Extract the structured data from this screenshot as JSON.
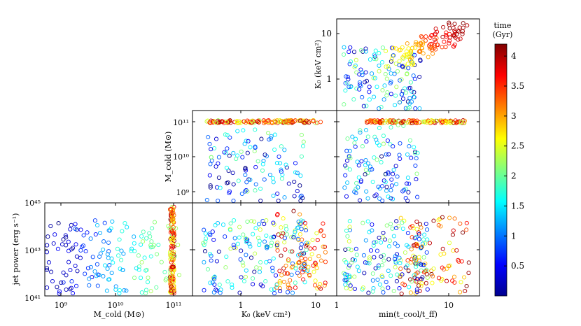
{
  "figure": {
    "colorbar": {
      "title_line1": "time",
      "title_line2": "(Gyr)",
      "ticks": [
        "0.5",
        "1",
        "1.5",
        "2",
        "2.5",
        "3",
        "3.5",
        "4"
      ],
      "range": [
        0,
        4.2
      ],
      "colormap": "jet"
    }
  },
  "chart_data": [
    {
      "id": "k0-vs-tratio",
      "type": "scatter",
      "title": "",
      "xlabel": "",
      "ylabel": "K₀ (keV cm²)",
      "xscale": "log",
      "yscale": "log",
      "xlim": [
        1,
        20
      ],
      "ylim": [
        0.2,
        20
      ],
      "xticks": [],
      "yticks": [
        "1",
        "10"
      ],
      "color_by": "time (Gyr)",
      "point_count": 240
    },
    {
      "id": "mcold-vs-k0",
      "type": "scatter",
      "title": "",
      "xlabel": "",
      "ylabel": "M_cold (M⊙)",
      "xscale": "log",
      "yscale": "log",
      "xlim": [
        0.2,
        16
      ],
      "ylim": [
        500000000.0,
        160000000000.0
      ],
      "xticks": [],
      "yticks": [
        "10⁹",
        "10¹⁰",
        "10¹¹"
      ],
      "color_by": "time (Gyr)",
      "point_count": 250
    },
    {
      "id": "mcold-vs-tratio",
      "type": "scatter",
      "title": "",
      "xlabel": "",
      "ylabel": "",
      "xscale": "log",
      "yscale": "log",
      "xlim": [
        1,
        20
      ],
      "ylim": [
        500000000.0,
        160000000000.0
      ],
      "xticks": [],
      "yticks": [],
      "color_by": "time (Gyr)",
      "point_count": 250
    },
    {
      "id": "power-vs-mcold",
      "type": "scatter",
      "title": "",
      "xlabel": "M_cold (M⊙)",
      "ylabel": "jet power (erg s⁻¹)",
      "xscale": "log",
      "yscale": "log",
      "xlim": [
        500000000.0,
        160000000000.0
      ],
      "ylim": [
        1e+41,
        1e+45
      ],
      "xticks": [
        "10⁹",
        "10¹⁰",
        "10¹¹"
      ],
      "yticks": [
        "10⁴¹",
        "10⁴³",
        "10⁴⁵"
      ],
      "color_by": "time (Gyr)",
      "point_count": 300
    },
    {
      "id": "power-vs-k0",
      "type": "scatter",
      "title": "",
      "xlabel": "K₀ (keV cm²)",
      "ylabel": "",
      "xscale": "log",
      "yscale": "log",
      "xlim": [
        0.2,
        16
      ],
      "ylim": [
        1e+41,
        1e+45
      ],
      "xticks": [
        "1",
        "10"
      ],
      "yticks": [],
      "color_by": "time (Gyr)",
      "point_count": 260
    },
    {
      "id": "power-vs-tratio",
      "type": "scatter",
      "title": "",
      "xlabel": "min(t_cool/t_ff)",
      "ylabel": "",
      "xscale": "log",
      "yscale": "log",
      "xlim": [
        1,
        20
      ],
      "ylim": [
        1e+41,
        1e+45
      ],
      "xticks": [
        "1",
        "10"
      ],
      "yticks": [],
      "color_by": "time (Gyr)",
      "point_count": 260
    }
  ]
}
